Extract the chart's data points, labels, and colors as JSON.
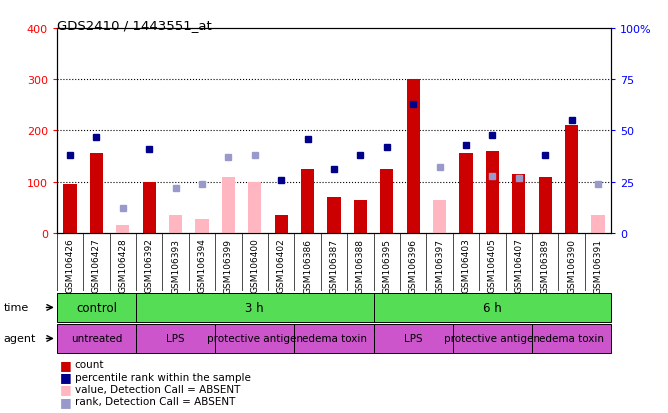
{
  "title": "GDS2410 / 1443551_at",
  "samples": [
    "GSM106426",
    "GSM106427",
    "GSM106428",
    "GSM106392",
    "GSM106393",
    "GSM106394",
    "GSM106399",
    "GSM106400",
    "GSM106402",
    "GSM106386",
    "GSM106387",
    "GSM106388",
    "GSM106395",
    "GSM106396",
    "GSM106397",
    "GSM106403",
    "GSM106405",
    "GSM106407",
    "GSM106389",
    "GSM106390",
    "GSM106391"
  ],
  "count_values": [
    95,
    155,
    null,
    100,
    null,
    null,
    null,
    null,
    35,
    125,
    70,
    65,
    125,
    300,
    null,
    155,
    160,
    115,
    110,
    210,
    null
  ],
  "count_absent": [
    null,
    null,
    15,
    null,
    35,
    28,
    110,
    100,
    null,
    null,
    null,
    null,
    null,
    null,
    65,
    null,
    null,
    null,
    null,
    null,
    35
  ],
  "rank_values": [
    38,
    47,
    null,
    41,
    null,
    null,
    null,
    null,
    26,
    46,
    31,
    38,
    42,
    63,
    null,
    43,
    48,
    null,
    38,
    55,
    null
  ],
  "rank_absent": [
    null,
    null,
    12,
    null,
    22,
    24,
    37,
    38,
    null,
    null,
    null,
    null,
    null,
    null,
    32,
    null,
    28,
    27,
    null,
    null,
    24
  ],
  "ylim": [
    0,
    400
  ],
  "y2lim": [
    0,
    100
  ],
  "yticks": [
    0,
    100,
    200,
    300,
    400
  ],
  "y2ticks": [
    0,
    25,
    50,
    75,
    100
  ],
  "bar_color": "#CC0000",
  "bar_absent_color": "#FFB6C1",
  "rank_color": "#00008B",
  "rank_absent_color": "#9999CC",
  "bg_color": "#C8C8C8",
  "plot_bg": "#FFFFFF",
  "green": "#55DD55",
  "magenta": "#CC55CC",
  "time_groups": [
    {
      "label": "control",
      "start": 0,
      "end": 3
    },
    {
      "label": "3 h",
      "start": 3,
      "end": 12
    },
    {
      "label": "6 h",
      "start": 12,
      "end": 21
    }
  ],
  "agent_groups": [
    {
      "label": "untreated",
      "start": 0,
      "end": 3
    },
    {
      "label": "LPS",
      "start": 3,
      "end": 6
    },
    {
      "label": "protective antigen",
      "start": 6,
      "end": 9
    },
    {
      "label": "edema toxin",
      "start": 9,
      "end": 12
    },
    {
      "label": "LPS",
      "start": 12,
      "end": 15
    },
    {
      "label": "protective antigen",
      "start": 15,
      "end": 18
    },
    {
      "label": "edema toxin",
      "start": 18,
      "end": 21
    }
  ],
  "legend_items": [
    {
      "color": "#CC0000",
      "label": "count"
    },
    {
      "color": "#00008B",
      "label": "percentile rank within the sample"
    },
    {
      "color": "#FFB6C1",
      "label": "value, Detection Call = ABSENT"
    },
    {
      "color": "#9999CC",
      "label": "rank, Detection Call = ABSENT"
    }
  ]
}
